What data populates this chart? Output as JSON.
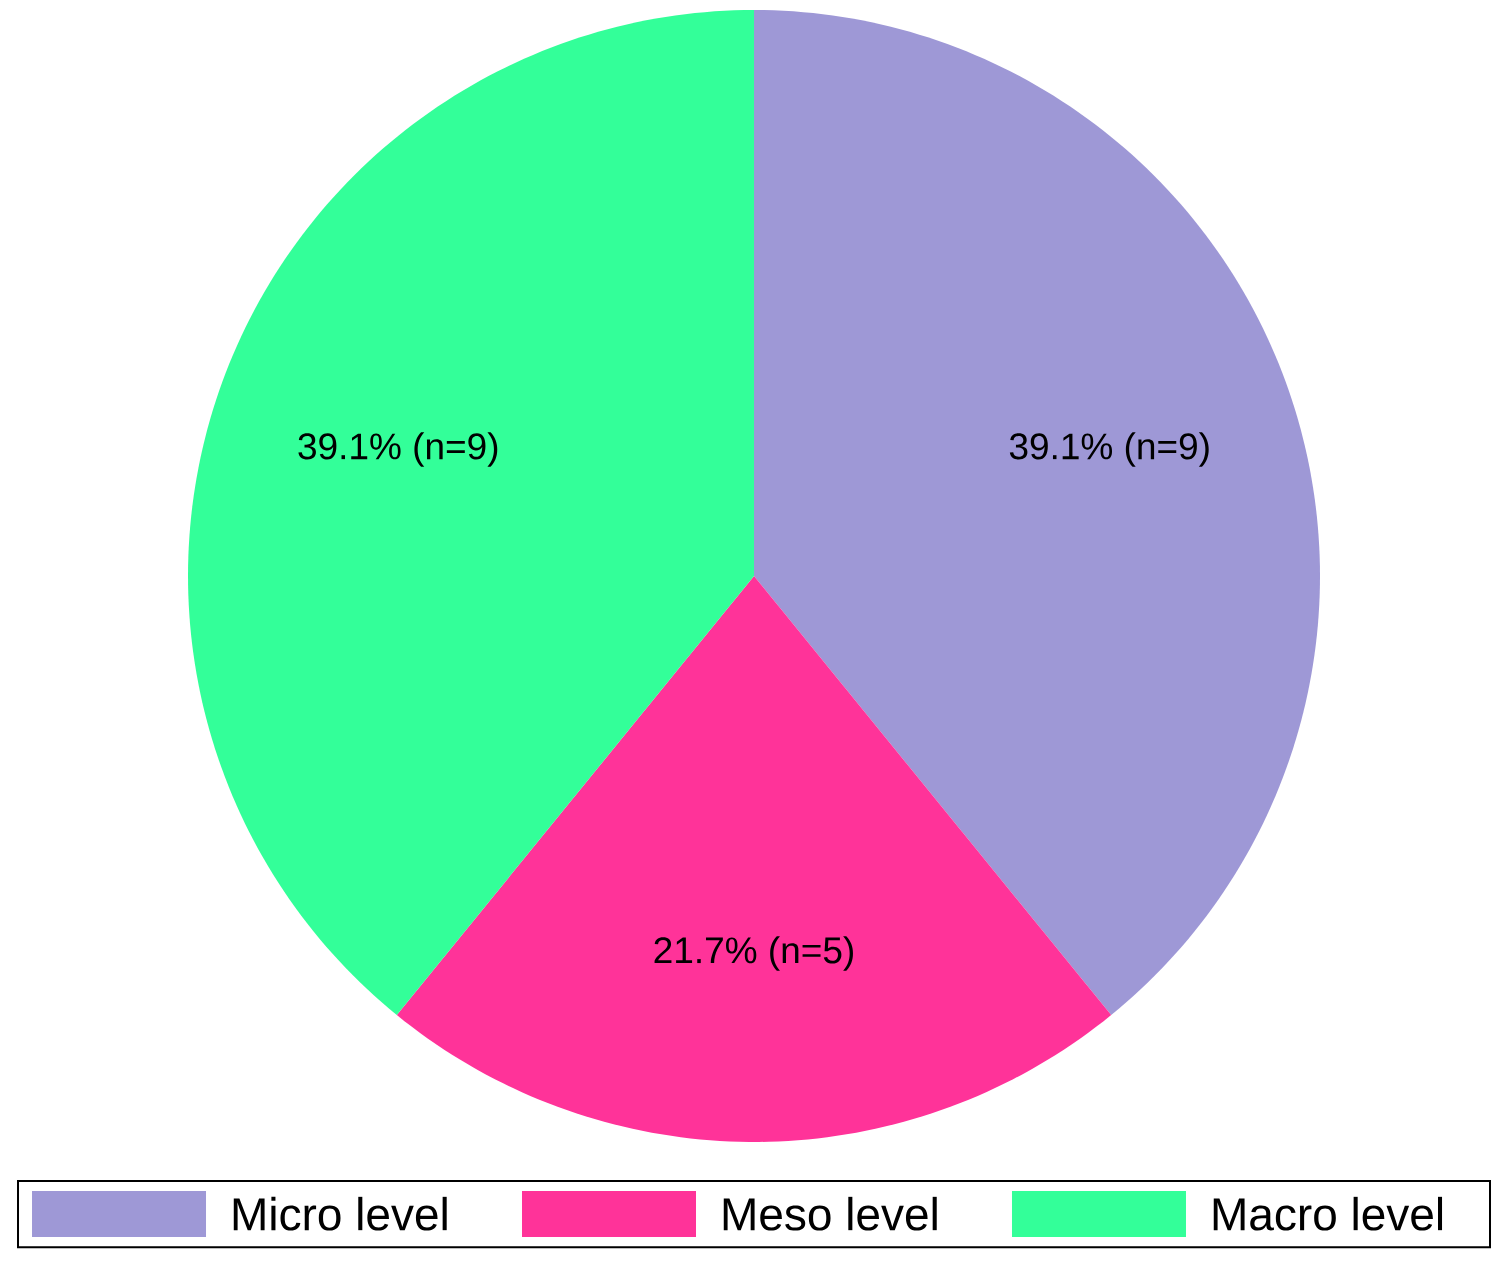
{
  "chart_data": {
    "type": "pie",
    "categories": [
      "Micro level",
      "Meso level",
      "Macro level"
    ],
    "values": [
      9,
      5,
      9
    ],
    "colors": [
      "#9e98d6",
      "#ff3399",
      "#33ff99"
    ],
    "value_labels": [
      "39.1% (n=9)",
      "21.7% (n=5)",
      "39.1% (n=9)"
    ],
    "legend": "bottom"
  }
}
